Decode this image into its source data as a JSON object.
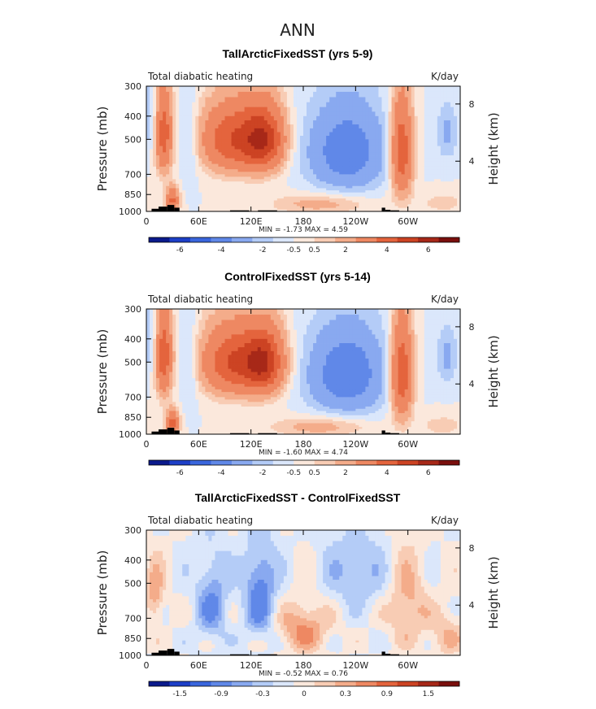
{
  "figure_title": "ANN",
  "colors": {
    "diverging": [
      "#0b1a8c",
      "#1d3fc7",
      "#3a66dd",
      "#6088e8",
      "#89a9f0",
      "#b4ccf7",
      "#dbe7fb",
      "#fbe8dc",
      "#f8ccb4",
      "#f4ac8a",
      "#ee8862",
      "#e4643d",
      "#cc4323",
      "#a72818",
      "#7a0f0d"
    ],
    "orography": "#000000",
    "frame": "#000000"
  },
  "chart_data": [
    {
      "type": "heatmap",
      "title": "TallArcticFixedSST (yrs 5-9)",
      "subtitle_left": "Total diabatic heating",
      "subtitle_right": "K/day",
      "xlabel": "",
      "ylabel": "Pressure (mb)",
      "ylabel_right": "Height (km)",
      "x_ticks": [
        "0",
        "60E",
        "120E",
        "180",
        "120W",
        "60W"
      ],
      "y_ticks": [
        "300",
        "400",
        "500",
        "700",
        "850",
        "1000"
      ],
      "y_ticks_right": [
        "8",
        "4"
      ],
      "stats_text": "MIN =   -1.73   MAX =    4.59",
      "min": -1.73,
      "max": 4.59,
      "colorbar_labels": [
        "-6",
        "-4",
        "-2",
        "-0.5",
        "0.5",
        "2",
        "4",
        "6"
      ],
      "field": "control",
      "scale": 1.0,
      "orography": "control"
    },
    {
      "type": "heatmap",
      "title": "ControlFixedSST (yrs 5-14)",
      "subtitle_left": "Total diabatic heating",
      "subtitle_right": "K/day",
      "xlabel": "",
      "ylabel": "Pressure (mb)",
      "ylabel_right": "Height (km)",
      "x_ticks": [
        "0",
        "60E",
        "120E",
        "180",
        "120W",
        "60W"
      ],
      "y_ticks": [
        "300",
        "400",
        "500",
        "700",
        "850",
        "1000"
      ],
      "y_ticks_right": [
        "8",
        "4"
      ],
      "stats_text": "MIN =   -1.60   MAX =    4.74",
      "min": -1.6,
      "max": 4.74,
      "colorbar_labels": [
        "-6",
        "-4",
        "-2",
        "-0.5",
        "0.5",
        "2",
        "4",
        "6"
      ],
      "field": "control",
      "scale": 1.03,
      "orography": "control"
    },
    {
      "type": "heatmap",
      "title": "TallArcticFixedSST - ControlFixedSST",
      "subtitle_left": "Total diabatic heating",
      "subtitle_right": "K/day",
      "xlabel": "",
      "ylabel": "Pressure (mb)",
      "ylabel_right": "Height (km)",
      "x_ticks": [
        "0",
        "60E",
        "120E",
        "180",
        "120W",
        "60W"
      ],
      "y_ticks": [
        "300",
        "400",
        "500",
        "700",
        "850",
        "1000"
      ],
      "y_ticks_right": [
        "8",
        "4"
      ],
      "stats_text": "MIN =   -0.52   MAX =    0.76",
      "min": -0.52,
      "max": 0.76,
      "colorbar_labels": [
        "-1.5",
        "-0.9",
        "-0.3",
        "0",
        "0.3",
        "0.9",
        "1.5"
      ],
      "field": "diff",
      "scale": 1.0,
      "orography": "control"
    }
  ]
}
